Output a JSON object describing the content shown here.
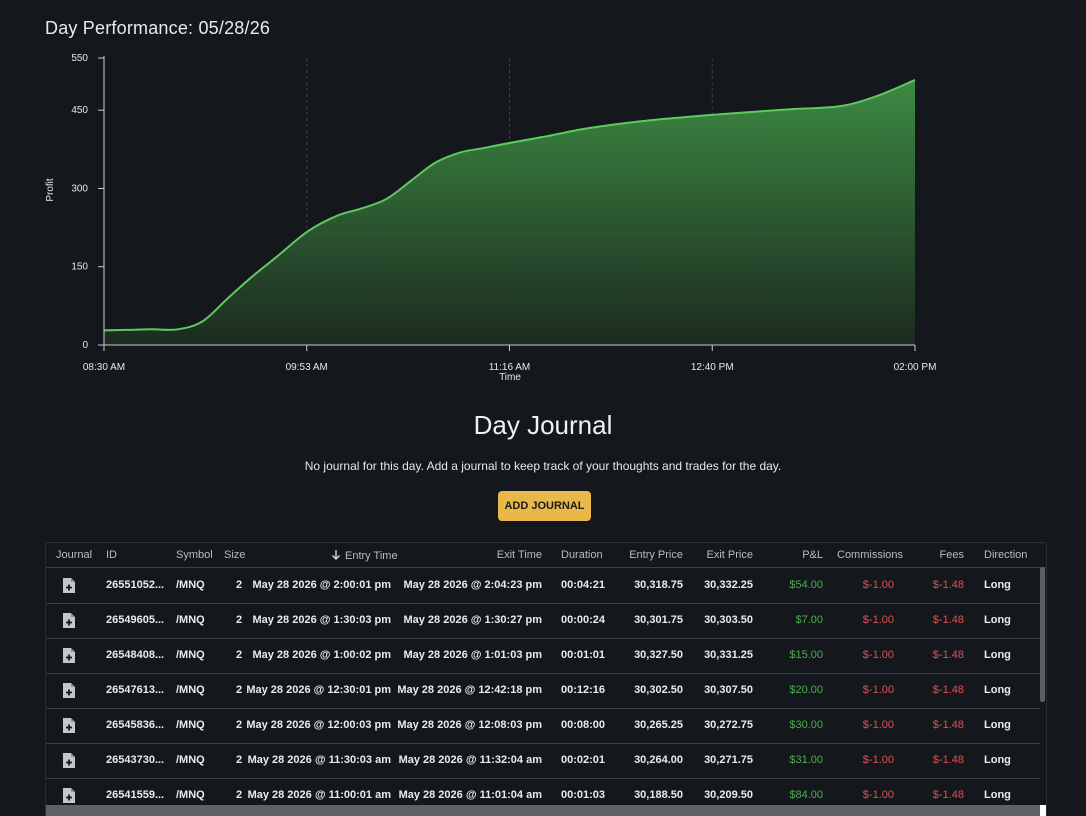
{
  "header": {
    "title": "Day Performance: 05/28/26"
  },
  "chart_data": {
    "type": "area",
    "xlabel": "Time",
    "ylabel": "Profit",
    "ylim": [
      0,
      550
    ],
    "yticks": [
      0,
      150,
      300,
      450,
      550
    ],
    "xticks": [
      "08:30 AM",
      "09:53 AM",
      "11:16 AM",
      "12:40 PM",
      "02:00 PM"
    ],
    "xlim_minutes": [
      510,
      840
    ],
    "grid": "vertical-dashed",
    "colors": {
      "line": "#5ec95e",
      "fill_top": "#3c8a42",
      "fill_bottom": "#1c2a20"
    },
    "series": [
      {
        "x": [
          "08:30 AM",
          "08:40 AM",
          "08:50 AM",
          "09:00 AM",
          "09:10 AM",
          "09:20 AM",
          "09:30 AM",
          "09:40 AM",
          "09:53 AM",
          "10:05 AM",
          "10:15 AM",
          "10:25 AM",
          "10:35 AM",
          "10:45 AM",
          "10:55 AM",
          "11:05 AM",
          "11:16 AM",
          "11:30 AM",
          "11:45 AM",
          "12:00 PM",
          "12:15 PM",
          "12:30 PM",
          "12:40 PM",
          "12:55 PM",
          "01:10 PM",
          "01:30 PM",
          "01:45 PM",
          "02:00 PM"
        ],
        "values": [
          28,
          29,
          30,
          30,
          45,
          88,
          130,
          168,
          218,
          248,
          262,
          280,
          315,
          350,
          369,
          378,
          388,
          400,
          414,
          424,
          432,
          438,
          442,
          447,
          452,
          458,
          478,
          508
        ]
      }
    ]
  },
  "journal": {
    "title": "Day Journal",
    "message": "No journal for this day. Add a journal to keep track of your thoughts and trades for the day.",
    "add_label": "ADD JOURNAL"
  },
  "table": {
    "sort_icon": "arrow-down-icon",
    "headers": {
      "journal": "Journal",
      "id": "ID",
      "symbol": "Symbol",
      "size": "Size",
      "entry_time": "Entry Time",
      "exit_time": "Exit Time",
      "duration": "Duration",
      "entry_price": "Entry Price",
      "exit_price": "Exit Price",
      "pnl": "P&L",
      "commissions": "Commissions",
      "fees": "Fees",
      "direction": "Direction"
    },
    "rows": [
      {
        "id": "26551052...",
        "symbol": "/MNQ",
        "size": "2",
        "entry_time": "May 28 2026 @ 2:00:01 pm",
        "exit_time": "May 28 2026 @ 2:04:23 pm",
        "duration": "00:04:21",
        "entry_price": "30,318.75",
        "exit_price": "30,332.25",
        "pnl": "$54.00",
        "commissions": "$-1.00",
        "fees": "$-1.48",
        "direction": "Long"
      },
      {
        "id": "26549605...",
        "symbol": "/MNQ",
        "size": "2",
        "entry_time": "May 28 2026 @ 1:30:03 pm",
        "exit_time": "May 28 2026 @ 1:30:27 pm",
        "duration": "00:00:24",
        "entry_price": "30,301.75",
        "exit_price": "30,303.50",
        "pnl": "$7.00",
        "commissions": "$-1.00",
        "fees": "$-1.48",
        "direction": "Long"
      },
      {
        "id": "26548408...",
        "symbol": "/MNQ",
        "size": "2",
        "entry_time": "May 28 2026 @ 1:00:02 pm",
        "exit_time": "May 28 2026 @ 1:01:03 pm",
        "duration": "00:01:01",
        "entry_price": "30,327.50",
        "exit_price": "30,331.25",
        "pnl": "$15.00",
        "commissions": "$-1.00",
        "fees": "$-1.48",
        "direction": "Long"
      },
      {
        "id": "26547613...",
        "symbol": "/MNQ",
        "size": "2",
        "entry_time": "May 28 2026 @ 12:30:01 pm",
        "exit_time": "May 28 2026 @ 12:42:18 pm",
        "duration": "00:12:16",
        "entry_price": "30,302.50",
        "exit_price": "30,307.50",
        "pnl": "$20.00",
        "commissions": "$-1.00",
        "fees": "$-1.48",
        "direction": "Long"
      },
      {
        "id": "26545836...",
        "symbol": "/MNQ",
        "size": "2",
        "entry_time": "May 28 2026 @ 12:00:03 pm",
        "exit_time": "May 28 2026 @ 12:08:03 pm",
        "duration": "00:08:00",
        "entry_price": "30,265.25",
        "exit_price": "30,272.75",
        "pnl": "$30.00",
        "commissions": "$-1.00",
        "fees": "$-1.48",
        "direction": "Long"
      },
      {
        "id": "26543730...",
        "symbol": "/MNQ",
        "size": "2",
        "entry_time": "May 28 2026 @ 11:30:03 am",
        "exit_time": "May 28 2026 @ 11:32:04 am",
        "duration": "00:02:01",
        "entry_price": "30,264.00",
        "exit_price": "30,271.75",
        "pnl": "$31.00",
        "commissions": "$-1.00",
        "fees": "$-1.48",
        "direction": "Long"
      },
      {
        "id": "26541559...",
        "symbol": "/MNQ",
        "size": "2",
        "entry_time": "May 28 2026 @ 11:00:01 am",
        "exit_time": "May 28 2026 @ 11:01:04 am",
        "duration": "00:01:03",
        "entry_price": "30,188.50",
        "exit_price": "30,209.50",
        "pnl": "$84.00",
        "commissions": "$-1.00",
        "fees": "$-1.48",
        "direction": "Long"
      }
    ],
    "journal_icon": "add-note-icon"
  }
}
